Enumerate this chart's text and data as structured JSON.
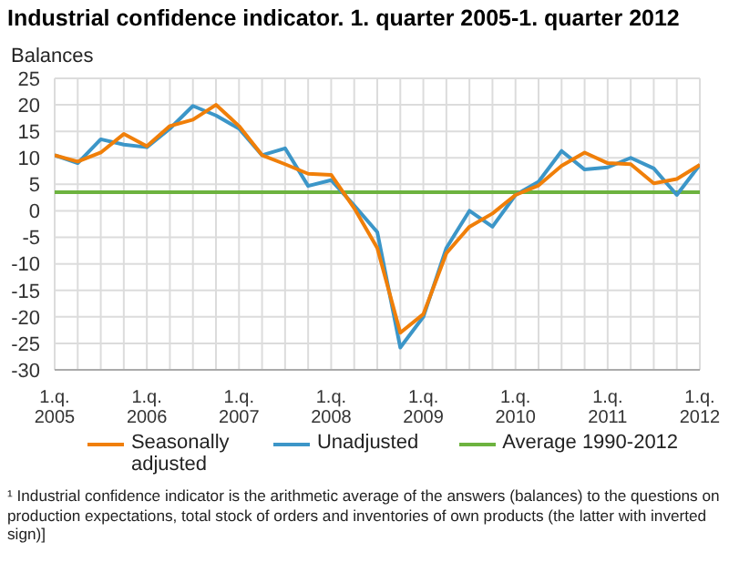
{
  "chart_data": {
    "type": "line",
    "title": "Industrial confidence indicator. 1. quarter 2005-1. quarter 2012",
    "ylabel": "Balances",
    "categories": [
      "1.q. 2005",
      null,
      null,
      null,
      "1.q. 2006",
      null,
      null,
      null,
      "1.q. 2007",
      null,
      null,
      null,
      "1.q. 2008",
      null,
      null,
      null,
      "1.q. 2009",
      null,
      null,
      null,
      "1.q. 2010",
      null,
      null,
      null,
      "1.q. 2011",
      null,
      null,
      null,
      "1.q. 2012"
    ],
    "series": [
      {
        "name": "Seasonally adjusted",
        "color": "#f07f09",
        "values": [
          10.5,
          9.3,
          11,
          14.5,
          12.2,
          16,
          17.2,
          20,
          16,
          10.5,
          8.8,
          7,
          6.8,
          0.5,
          -7,
          -23,
          -19.5,
          -8,
          -3,
          -0.5,
          3,
          4.8,
          8.5,
          11,
          9,
          8.8,
          5.2,
          6,
          8.7
        ]
      },
      {
        "name": "Unadjusted",
        "color": "#3c96c8",
        "values": [
          10.5,
          9,
          13.5,
          12.5,
          12,
          15.5,
          19.8,
          18,
          15.5,
          10.5,
          11.8,
          4.7,
          5.8,
          1,
          -4,
          -25.8,
          -20,
          -7,
          0,
          -3,
          3,
          5.5,
          11.3,
          7.8,
          8.2,
          10,
          8,
          3,
          8.7
        ]
      },
      {
        "name": "Average 1990-2012",
        "color": "#6db33f",
        "values": [
          3.5,
          3.5,
          3.5,
          3.5,
          3.5,
          3.5,
          3.5,
          3.5,
          3.5,
          3.5,
          3.5,
          3.5,
          3.5,
          3.5,
          3.5,
          3.5,
          3.5,
          3.5,
          3.5,
          3.5,
          3.5,
          3.5,
          3.5,
          3.5,
          3.5,
          3.5,
          3.5,
          3.5,
          3.5
        ]
      }
    ],
    "ylim": [
      -30,
      25
    ],
    "yticks": [
      -30,
      -25,
      -20,
      -15,
      -10,
      -5,
      0,
      5,
      10,
      15,
      20,
      25
    ],
    "grid": true,
    "legend": "bottom",
    "marker": "none",
    "line_style": "solid",
    "annotations": [
      "¹ Industrial confidence indicator is the arithmetic average of the answers (balances) to the questions on production expectations, total stock of orders and inventories of own products (the latter with inverted sign)]"
    ]
  }
}
